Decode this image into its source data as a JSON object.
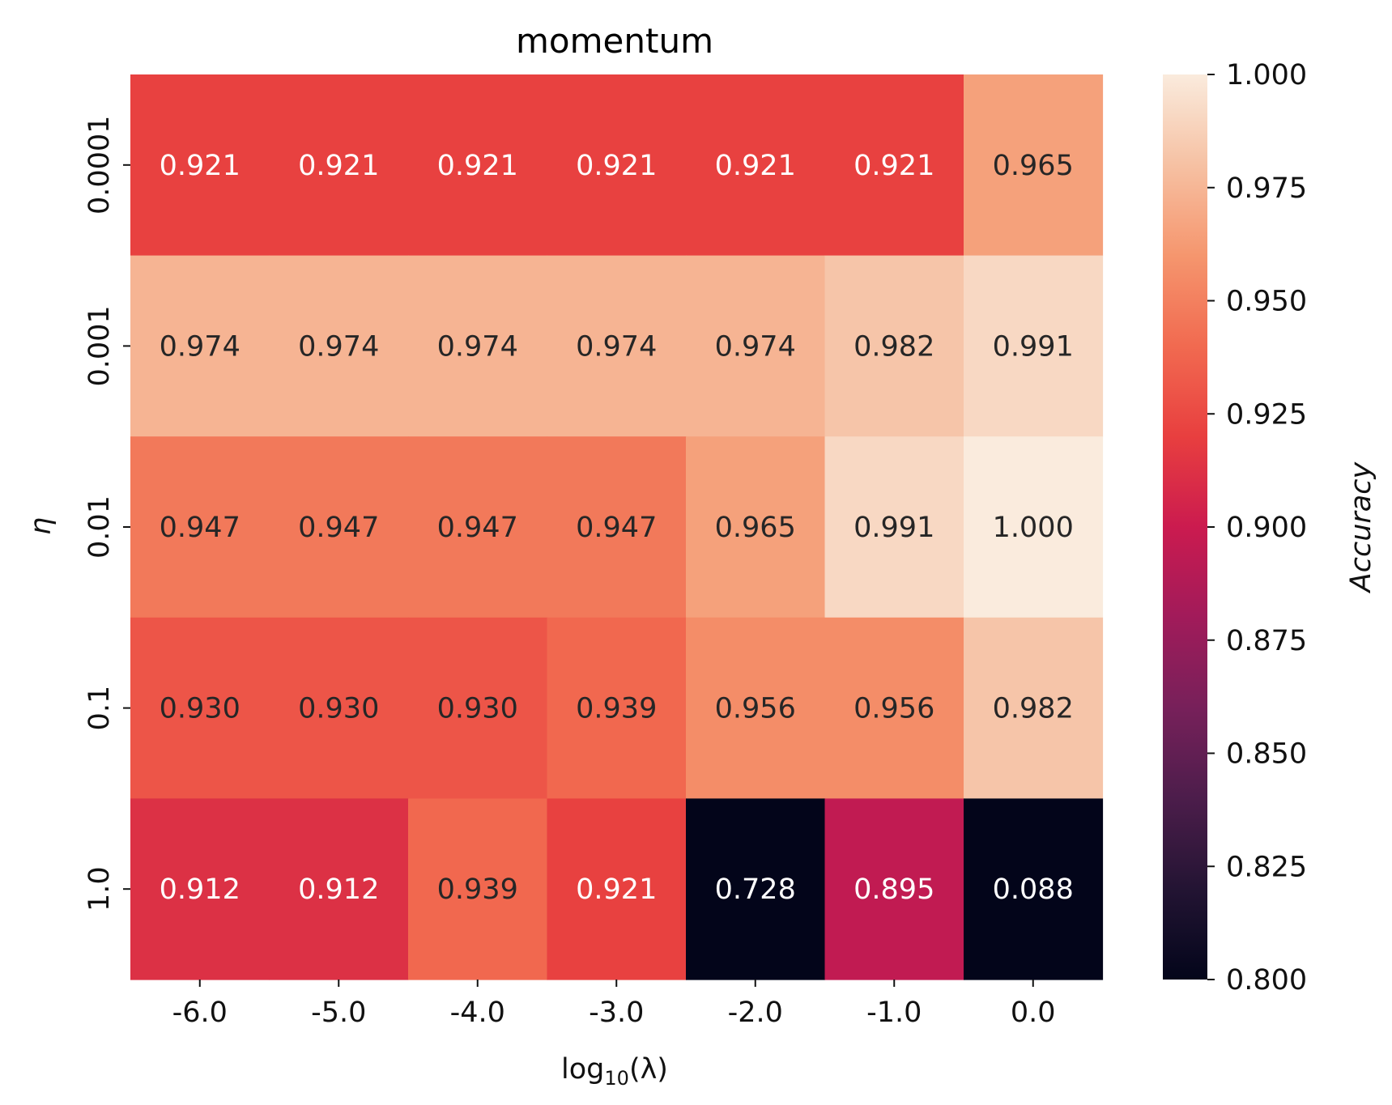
{
  "chart_data": {
    "type": "heatmap",
    "title": "momentum",
    "xlabel": "log",
    "xlabel_sub": "10",
    "xlabel_arg": "(λ)",
    "ylabel": "η",
    "x_categories": [
      "-6.0",
      "-5.0",
      "-4.0",
      "-3.0",
      "-2.0",
      "-1.0",
      "0.0"
    ],
    "y_categories": [
      "0.0001",
      "0.001",
      "0.01",
      "0.1",
      "1.0"
    ],
    "values": [
      [
        0.921,
        0.921,
        0.921,
        0.921,
        0.921,
        0.921,
        0.965
      ],
      [
        0.974,
        0.974,
        0.974,
        0.974,
        0.974,
        0.982,
        0.991
      ],
      [
        0.947,
        0.947,
        0.947,
        0.947,
        0.965,
        0.991,
        1.0
      ],
      [
        0.93,
        0.93,
        0.93,
        0.939,
        0.956,
        0.956,
        0.982
      ],
      [
        0.912,
        0.912,
        0.939,
        0.921,
        0.728,
        0.895,
        0.088
      ]
    ],
    "value_format_decimals": 3,
    "colorbar": {
      "label": "Accuracy",
      "vmin": 0.8,
      "vmax": 1.0,
      "ticks": [
        "0.800",
        "0.825",
        "0.850",
        "0.875",
        "0.900",
        "0.925",
        "0.950",
        "0.975",
        "1.000"
      ],
      "colormap": "rocket"
    },
    "grid": false
  }
}
